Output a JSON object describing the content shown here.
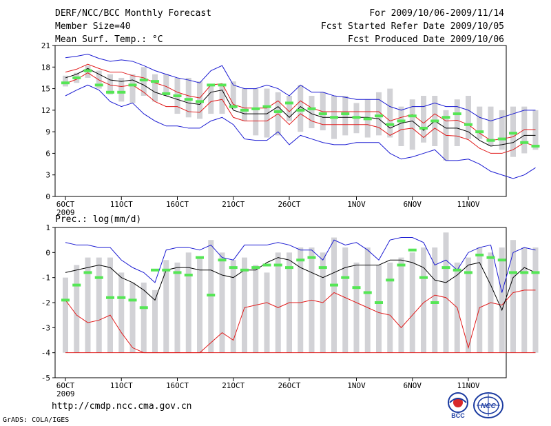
{
  "header": {
    "title": "DERF/NCC/BCC Monthly Forecast",
    "member_size": "Member Size=40",
    "variable": "Mean Surf. Temp.: °C",
    "period": "For 2009/10/06-2009/11/14",
    "refer_date": "Fcst Started Refer Date 2009/10/05",
    "produced_date": "Fcst Produced Date 2009/10/06"
  },
  "precip_label": "Prec.: log(mm/d)",
  "footer": {
    "url": "http://cmdp.ncc.cma.gov.cn",
    "credit": "GrADS: COLA/IGES",
    "logo_left_text": "BCC",
    "logo_right_text": "NCC"
  },
  "colors": {
    "box": "#d2d2d6",
    "median": "#55e655",
    "mean": "#000000",
    "spread": "#e11b1b",
    "extreme": "#1a1ad2"
  },
  "chart_data": [
    {
      "type": "box",
      "name": "temperature",
      "title": "Mean Surf. Temp.: °C",
      "ylim": [
        0,
        21
      ],
      "yticks": [
        0,
        3,
        6,
        9,
        12,
        15,
        18,
        21
      ],
      "xticks": [
        {
          "day": 1,
          "label": "6OCT"
        },
        {
          "day": 6,
          "label": "11OCT"
        },
        {
          "day": 11,
          "label": "16OCT"
        },
        {
          "day": 16,
          "label": "21OCT"
        },
        {
          "day": 21,
          "label": "26OCT"
        },
        {
          "day": 27,
          "label": "1NOV"
        },
        {
          "day": 32,
          "label": "6NOV"
        },
        {
          "day": 37,
          "label": "11NOV"
        }
      ],
      "year_label": "2009",
      "box_low": [
        15.3,
        15.8,
        16.5,
        15.0,
        14.2,
        13.2,
        13.0,
        14.0,
        13.2,
        14.0,
        11.5,
        11.0,
        10.8,
        11.5,
        11.5,
        12.2,
        10.5,
        8.5,
        8.2,
        8.5,
        10.5,
        9.0,
        9.5,
        9.2,
        8.0,
        8.5,
        8.8,
        8.2,
        8.5,
        8.2,
        7.0,
        6.5,
        7.5,
        7.0,
        5.0,
        7.0,
        8.0,
        8.0,
        7.0,
        6.5,
        5.5,
        6.0,
        6.5
      ],
      "box_high": [
        16.8,
        17.2,
        18.2,
        17.5,
        17.0,
        16.5,
        17.0,
        18.0,
        17.0,
        17.0,
        16.5,
        16.5,
        16.0,
        15.5,
        15.5,
        16.0,
        15.0,
        15.0,
        15.0,
        14.5,
        14.0,
        15.5,
        14.0,
        14.5,
        14.0,
        14.0,
        13.0,
        13.5,
        14.5,
        15.0,
        12.5,
        13.5,
        14.0,
        14.0,
        12.0,
        13.5,
        14.0,
        12.5,
        12.5,
        12.0,
        12.5,
        12.5,
        12.0
      ],
      "median": [
        15.8,
        16.5,
        17.5,
        15.5,
        14.5,
        14.5,
        15.5,
        16.2,
        16.0,
        14.3,
        14.0,
        13.5,
        13.2,
        15.5,
        15.5,
        12.5,
        12.0,
        12.2,
        12.5,
        11.8,
        13.0,
        12.0,
        12.2,
        11.5,
        11.0,
        11.5,
        11.0,
        10.8,
        11.2,
        10.0,
        10.5,
        11.2,
        9.5,
        10.5,
        11.0,
        11.5,
        10.0,
        9.0,
        7.8,
        8.0,
        8.8,
        7.5,
        7.0
      ],
      "mean": [
        16.5,
        17.0,
        17.8,
        17.0,
        16.2,
        16.0,
        16.2,
        15.5,
        14.5,
        14.0,
        13.5,
        13.0,
        12.8,
        14.5,
        14.8,
        12.0,
        11.5,
        11.5,
        11.5,
        12.5,
        11.0,
        12.5,
        11.5,
        11.0,
        11.0,
        11.0,
        11.0,
        11.0,
        10.8,
        9.5,
        10.2,
        10.5,
        9.2,
        10.5,
        9.5,
        9.5,
        9.0,
        7.8,
        7.0,
        7.2,
        7.5,
        8.5,
        8.5
      ],
      "upper_sd": [
        17.3,
        17.7,
        18.4,
        17.8,
        17.3,
        17.3,
        16.8,
        16.5,
        15.8,
        15.3,
        14.5,
        14.0,
        13.7,
        15.5,
        15.7,
        12.8,
        12.3,
        12.3,
        12.3,
        13.3,
        11.8,
        13.3,
        12.3,
        11.8,
        11.8,
        11.8,
        11.8,
        11.8,
        11.8,
        10.5,
        11.0,
        11.4,
        10.2,
        11.5,
        10.5,
        10.6,
        10.0,
        8.8,
        7.8,
        8.0,
        8.3,
        9.3,
        9.3
      ],
      "lower_sd": [
        15.7,
        16.3,
        17.2,
        16.2,
        15.5,
        15.3,
        15.5,
        14.5,
        13.2,
        12.5,
        12.5,
        11.8,
        11.7,
        13.2,
        13.5,
        11.0,
        10.5,
        10.5,
        10.5,
        11.5,
        10.0,
        11.5,
        10.5,
        10.0,
        10.0,
        10.0,
        10.0,
        10.0,
        9.6,
        8.5,
        9.3,
        9.5,
        8.2,
        9.5,
        8.5,
        8.4,
        7.9,
        6.7,
        6.0,
        6.0,
        6.5,
        7.5,
        7.0
      ],
      "max_line": [
        19.3,
        19.5,
        19.8,
        19.2,
        18.8,
        19.0,
        18.8,
        18.2,
        17.5,
        17.0,
        16.5,
        16.2,
        15.8,
        17.5,
        18.2,
        15.5,
        15.0,
        15.0,
        15.5,
        15.0,
        14.0,
        15.5,
        14.5,
        14.5,
        14.0,
        13.8,
        13.5,
        13.5,
        13.5,
        12.5,
        12.0,
        12.5,
        12.5,
        13.0,
        12.5,
        12.5,
        12.0,
        11.0,
        10.5,
        11.0,
        11.5,
        12.0,
        12.0
      ],
      "min_line": [
        14.0,
        14.8,
        15.5,
        14.8,
        13.2,
        12.5,
        13.0,
        11.5,
        10.5,
        9.8,
        9.8,
        9.5,
        9.5,
        10.5,
        11.0,
        10.0,
        8.0,
        7.8,
        7.8,
        9.0,
        7.2,
        8.5,
        8.0,
        7.5,
        7.2,
        7.2,
        7.5,
        7.5,
        7.5,
        6.0,
        5.2,
        5.5,
        6.0,
        6.5,
        5.0,
        5.0,
        5.2,
        4.5,
        3.5,
        3.0,
        2.5,
        3.0,
        4.0
      ]
    },
    {
      "type": "box",
      "name": "precipitation",
      "title": "Prec.: log(mm/d)",
      "ylim": [
        -5,
        1
      ],
      "yticks": [
        -5,
        -4,
        -3,
        -2,
        -1,
        0,
        1
      ],
      "xticks": [
        {
          "day": 1,
          "label": "6OCT"
        },
        {
          "day": 6,
          "label": "11OCT"
        },
        {
          "day": 11,
          "label": "16OCT"
        },
        {
          "day": 16,
          "label": "21OCT"
        },
        {
          "day": 21,
          "label": "26OCT"
        },
        {
          "day": 27,
          "label": "1NOV"
        },
        {
          "day": 32,
          "label": "6NOV"
        },
        {
          "day": 37,
          "label": "11NOV"
        }
      ],
      "year_label": "2009",
      "box_low": [
        -4,
        -4,
        -4,
        -4,
        -4,
        -4,
        -4,
        -4,
        -4,
        -4,
        -4,
        -4,
        -4,
        -4,
        -4,
        -4,
        -4,
        -4,
        -4,
        -4,
        -4,
        -4,
        -4,
        -4,
        -4,
        -4,
        -4,
        -4,
        -4,
        -4,
        -4,
        -4,
        -4,
        -4,
        -4,
        -4,
        -4,
        -4,
        -4,
        -4,
        -4,
        -4,
        -4
      ],
      "box_high": [
        -1.0,
        -0.5,
        -0.2,
        -0.2,
        -0.2,
        -0.8,
        -1.2,
        -1.2,
        -1.5,
        -0.3,
        -0.4,
        0.0,
        -0.2,
        0.5,
        0.0,
        -0.3,
        -0.2,
        -0.5,
        -0.8,
        0.0,
        0.0,
        0.2,
        0.2,
        0.0,
        0.6,
        0.2,
        -0.4,
        0.2,
        -0.5,
        -0.4,
        -0.2,
        0.0,
        0.2,
        0.2,
        0.8,
        -0.4,
        -0.2,
        0.2,
        0.0,
        0.2,
        0.5,
        0.2,
        0.2
      ],
      "median": [
        -1.9,
        -1.3,
        -0.8,
        -1.0,
        -1.8,
        -1.8,
        -1.9,
        -2.2,
        -0.7,
        -0.7,
        -0.8,
        -0.9,
        -0.2,
        -1.7,
        -0.3,
        -0.6,
        -0.7,
        -0.6,
        -0.5,
        -0.5,
        -0.6,
        -0.3,
        -0.2,
        -0.6,
        -1.3,
        -1.0,
        -1.4,
        -1.6,
        -2.0,
        -1.1,
        -0.5,
        0.1,
        -1.0,
        -2.0,
        -0.6,
        -0.7,
        -0.8,
        -0.1,
        -0.2,
        -0.3,
        -0.8,
        -0.8,
        -0.8
      ],
      "mean": [
        -0.8,
        -0.7,
        -0.6,
        -0.5,
        -0.6,
        -1.0,
        -1.2,
        -1.5,
        -1.9,
        -0.7,
        -0.6,
        -0.6,
        -0.7,
        -0.7,
        -0.9,
        -1.0,
        -0.7,
        -0.7,
        -0.4,
        -0.2,
        -0.3,
        -0.6,
        -0.8,
        -1.0,
        -0.8,
        -0.6,
        -0.5,
        -0.5,
        -0.5,
        -0.3,
        -0.3,
        -0.4,
        -0.6,
        -1.1,
        -1.2,
        -0.9,
        -0.5,
        -0.4,
        -1.3,
        -2.3,
        -1.0,
        -0.6,
        -0.8
      ],
      "upper_sd": [
        -0.5,
        -0.4,
        -0.3,
        -0.2,
        -0.3,
        -0.7,
        -0.9,
        -1.2,
        -1.6,
        -0.4,
        -0.3,
        -0.3,
        -0.4,
        -0.4,
        -0.6,
        -0.7,
        -0.4,
        -0.4,
        -0.1,
        0.1,
        0.0,
        -0.3,
        -0.5,
        -0.7,
        -0.5,
        -0.3,
        -0.2,
        -0.2,
        -0.2,
        0.0,
        0.0,
        -0.1,
        -0.3,
        -0.8,
        -0.9,
        -0.6,
        -0.2,
        -0.1,
        -1.0,
        -2.0,
        -0.7,
        -0.3,
        -0.5
      ],
      "lower_sd": [
        -1.1,
        -1.0,
        -0.9,
        -0.8,
        -0.9,
        -1.3,
        -1.5,
        -1.8,
        -2.2,
        -1.0,
        -0.9,
        -0.9,
        -1.0,
        -1.0,
        -1.2,
        -1.3,
        -1.0,
        -1.0,
        -0.7,
        -0.5,
        -0.6,
        -0.9,
        -1.1,
        -1.3,
        -1.1,
        -0.9,
        -0.8,
        -0.8,
        -0.8,
        -0.6,
        -0.6,
        -0.7,
        -0.9,
        -1.4,
        -1.5,
        -1.2,
        -0.8,
        -0.7,
        -1.6,
        -2.6,
        -1.3,
        -0.9,
        -1.1
      ],
      "max_line": [
        0.4,
        0.3,
        0.3,
        0.2,
        0.2,
        -0.3,
        -0.6,
        -0.8,
        -1.2,
        0.1,
        0.2,
        0.2,
        0.1,
        0.3,
        -0.2,
        -0.3,
        0.3,
        0.3,
        0.3,
        0.4,
        0.3,
        0.1,
        0.1,
        -0.3,
        0.5,
        0.3,
        0.4,
        0.1,
        -0.3,
        0.5,
        0.6,
        0.6,
        0.4,
        -0.5,
        -0.3,
        -0.7,
        0.0,
        0.2,
        0.3,
        -1.6,
        0.0,
        0.2,
        0.1
      ],
      "min_line": [
        -1.9,
        -2.5,
        -2.8,
        -2.7,
        -2.5,
        -3.2,
        -3.8,
        -4.0,
        -4.0,
        -4.0,
        -4.0,
        -4.0,
        -4.0,
        -3.6,
        -3.2,
        -3.5,
        -2.2,
        -2.1,
        -2.0,
        -2.2,
        -2.0,
        -2.0,
        -1.9,
        -2.0,
        -1.6,
        -1.8,
        -2.0,
        -2.2,
        -2.4,
        -2.5,
        -3.0,
        -2.5,
        -2.0,
        -1.7,
        -1.8,
        -2.2,
        -3.8,
        -2.2,
        -2.0,
        -2.1,
        -1.6,
        -1.5,
        -1.5
      ],
      "floor_line": -4
    }
  ]
}
